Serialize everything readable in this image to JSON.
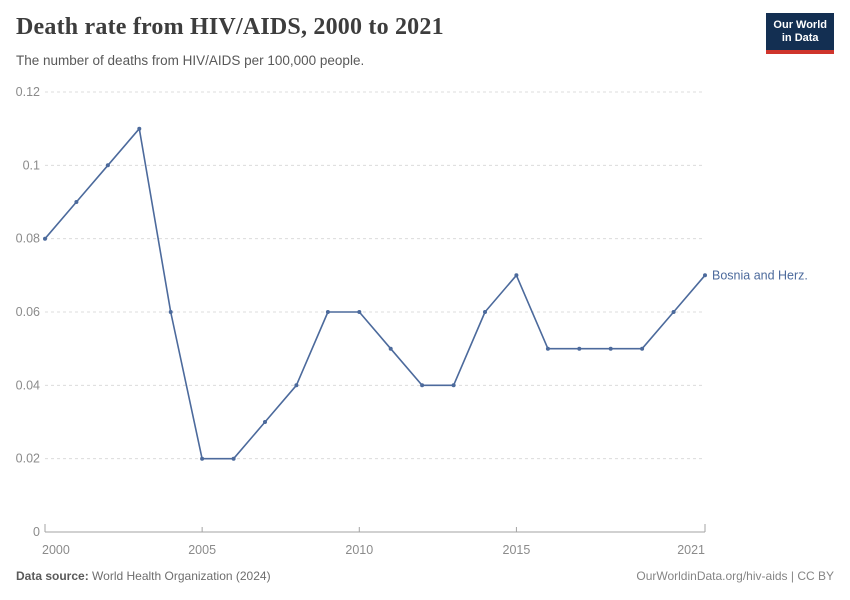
{
  "header": {
    "title": "Death rate from HIV/AIDS, 2000 to 2021",
    "subtitle": "The number of deaths from HIV/AIDS per 100,000 people.",
    "logo_line1": "Our World",
    "logo_line2": "in Data"
  },
  "chart_data": {
    "type": "line",
    "title": "Death rate from HIV/AIDS, 2000 to 2021",
    "xlabel": "",
    "ylabel": "",
    "x": [
      2000,
      2001,
      2002,
      2003,
      2004,
      2005,
      2006,
      2007,
      2008,
      2009,
      2010,
      2011,
      2012,
      2013,
      2014,
      2015,
      2016,
      2017,
      2018,
      2019,
      2020,
      2021
    ],
    "series": [
      {
        "name": "Bosnia and Herz.",
        "values": [
          0.08,
          0.09,
          0.1,
          0.11,
          0.06,
          0.02,
          0.02,
          0.03,
          0.04,
          0.06,
          0.06,
          0.05,
          0.04,
          0.04,
          0.06,
          0.07,
          0.05,
          0.05,
          0.05,
          0.05,
          0.06,
          0.07
        ]
      }
    ],
    "ylim": [
      0,
      0.12
    ],
    "yticks": [
      0,
      0.02,
      0.04,
      0.06,
      0.08,
      0.1,
      0.12
    ],
    "ytick_labels": [
      "0",
      "0.02",
      "0.04",
      "0.06",
      "0.08",
      "0.1",
      "0.12"
    ],
    "xticks": [
      2000,
      2005,
      2010,
      2015,
      2021
    ],
    "grid": "horizontal-dashed",
    "legend_position": "end-of-line-label"
  },
  "footer": {
    "source_label": "Data source:",
    "source_text": " World Health Organization (2024)",
    "link_text": "OurWorldinData.org/hiv-aids | CC BY"
  },
  "colors": {
    "series": "#4c6a9c",
    "grid": "#dcdcdc",
    "axis": "#a3a3a3",
    "tick_label": "#8b8b8b",
    "title": "#3d3d3d",
    "logo_bg": "#132f52",
    "logo_red": "#cf352c"
  }
}
